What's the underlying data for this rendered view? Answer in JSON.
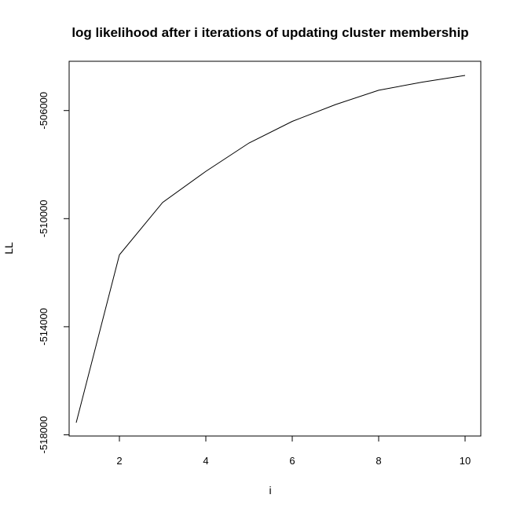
{
  "chart_data": {
    "type": "line",
    "title": "log likelihood after i iterations of updating cluster membership",
    "xlabel": "i",
    "ylabel": "LL",
    "x": [
      1,
      2,
      3,
      4,
      5,
      6,
      7,
      8,
      9,
      10
    ],
    "series": [
      {
        "values": [
          -517550,
          -511340,
          -509400,
          -508250,
          -507200,
          -506400,
          -505780,
          -505250,
          -504950,
          -504700
        ],
        "color": "#000000"
      }
    ],
    "xlim": [
      1,
      10
    ],
    "ylim": [
      -518000,
      -504700
    ],
    "xticks": [
      2,
      4,
      6,
      8,
      10
    ],
    "yticks": [
      -518000,
      -514000,
      -510000,
      -506000
    ],
    "xtick_labels": [
      "2",
      "4",
      "6",
      "8",
      "10"
    ],
    "ytick_labels": [
      "-518000",
      "-514000",
      "-510000",
      "-506000"
    ],
    "grid": false,
    "legend": "none"
  }
}
